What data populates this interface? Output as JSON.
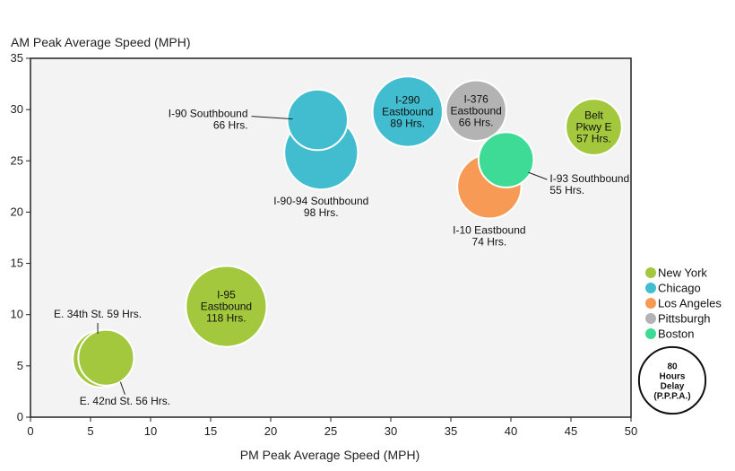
{
  "chart_data": {
    "type": "bubble",
    "xlabel": "PM Peak Average Speed (MPH)",
    "ylabel": "AM Peak Average Speed (MPH)",
    "xlim": [
      0,
      50
    ],
    "ylim": [
      0,
      35
    ],
    "xticks": [
      "0",
      "5",
      "10",
      "15",
      "20",
      "25",
      "30",
      "35",
      "40",
      "45",
      "50"
    ],
    "yticks": [
      "0",
      "5",
      "10",
      "15",
      "20",
      "25",
      "30",
      "35"
    ],
    "grid": false,
    "legend_placement": "right",
    "size_unit": "Hours of delay",
    "colors": {
      "New York": "#a3c83d",
      "Chicago": "#42bdd0",
      "Los Angeles": "#f79a55",
      "Pittsburgh": "#b3b3b3",
      "Boston": "#3ddb95"
    },
    "legend": [
      "New York",
      "Chicago",
      "Los Angeles",
      "Pittsburgh",
      "Boston"
    ],
    "points": [
      {
        "city": "Chicago",
        "x": 24.2,
        "y": 25.8,
        "delay": 98,
        "label_lines": [
          "I-90-94 Southbound",
          "98 Hrs."
        ],
        "label_pos": "external-below"
      },
      {
        "city": "Chicago",
        "x": 23.9,
        "y": 29.0,
        "delay": 66,
        "label_lines": [
          "I-90 Southbound",
          "66 Hrs."
        ],
        "label_pos": "external-left"
      },
      {
        "city": "Chicago",
        "x": 31.4,
        "y": 29.8,
        "delay": 89,
        "label_lines": [
          "I-290",
          "Eastbound",
          "89 Hrs."
        ],
        "label_pos": "inside"
      },
      {
        "city": "Pittsburgh",
        "x": 37.1,
        "y": 29.9,
        "delay": 66,
        "label_lines": [
          "I-376",
          "Eastbound",
          "66 Hrs."
        ],
        "label_pos": "inside"
      },
      {
        "city": "New York",
        "x": 46.9,
        "y": 28.3,
        "delay": 57,
        "label_lines": [
          "Belt",
          "Pkwy E",
          "57 Hrs."
        ],
        "label_pos": "inside"
      },
      {
        "city": "Los Angeles",
        "x": 38.2,
        "y": 22.5,
        "delay": 74,
        "label_lines": [
          "I-10 Eastbound",
          "74 Hrs."
        ],
        "label_pos": "external-below"
      },
      {
        "city": "Boston",
        "x": 39.6,
        "y": 25.1,
        "delay": 55,
        "label_lines": [
          "I-93 Southbound",
          "55 Hrs."
        ],
        "label_pos": "external-right"
      },
      {
        "city": "New York",
        "x": 16.3,
        "y": 10.8,
        "delay": 118,
        "label_lines": [
          "I-95",
          "Eastbound",
          "118 Hrs."
        ],
        "label_pos": "inside"
      },
      {
        "city": "New York",
        "x": 5.9,
        "y": 5.7,
        "delay": 59,
        "label_lines": [
          "E. 34th St. 59 Hrs."
        ],
        "label_pos": "external-above"
      },
      {
        "city": "New York",
        "x": 6.3,
        "y": 5.8,
        "delay": 56,
        "label_lines": [
          "E. 42nd St. 56 Hrs."
        ],
        "label_pos": "external-below-right"
      }
    ],
    "size_key": {
      "lines": [
        "80",
        "Hours",
        "Delay",
        "(P.P.P.A.)"
      ]
    }
  }
}
